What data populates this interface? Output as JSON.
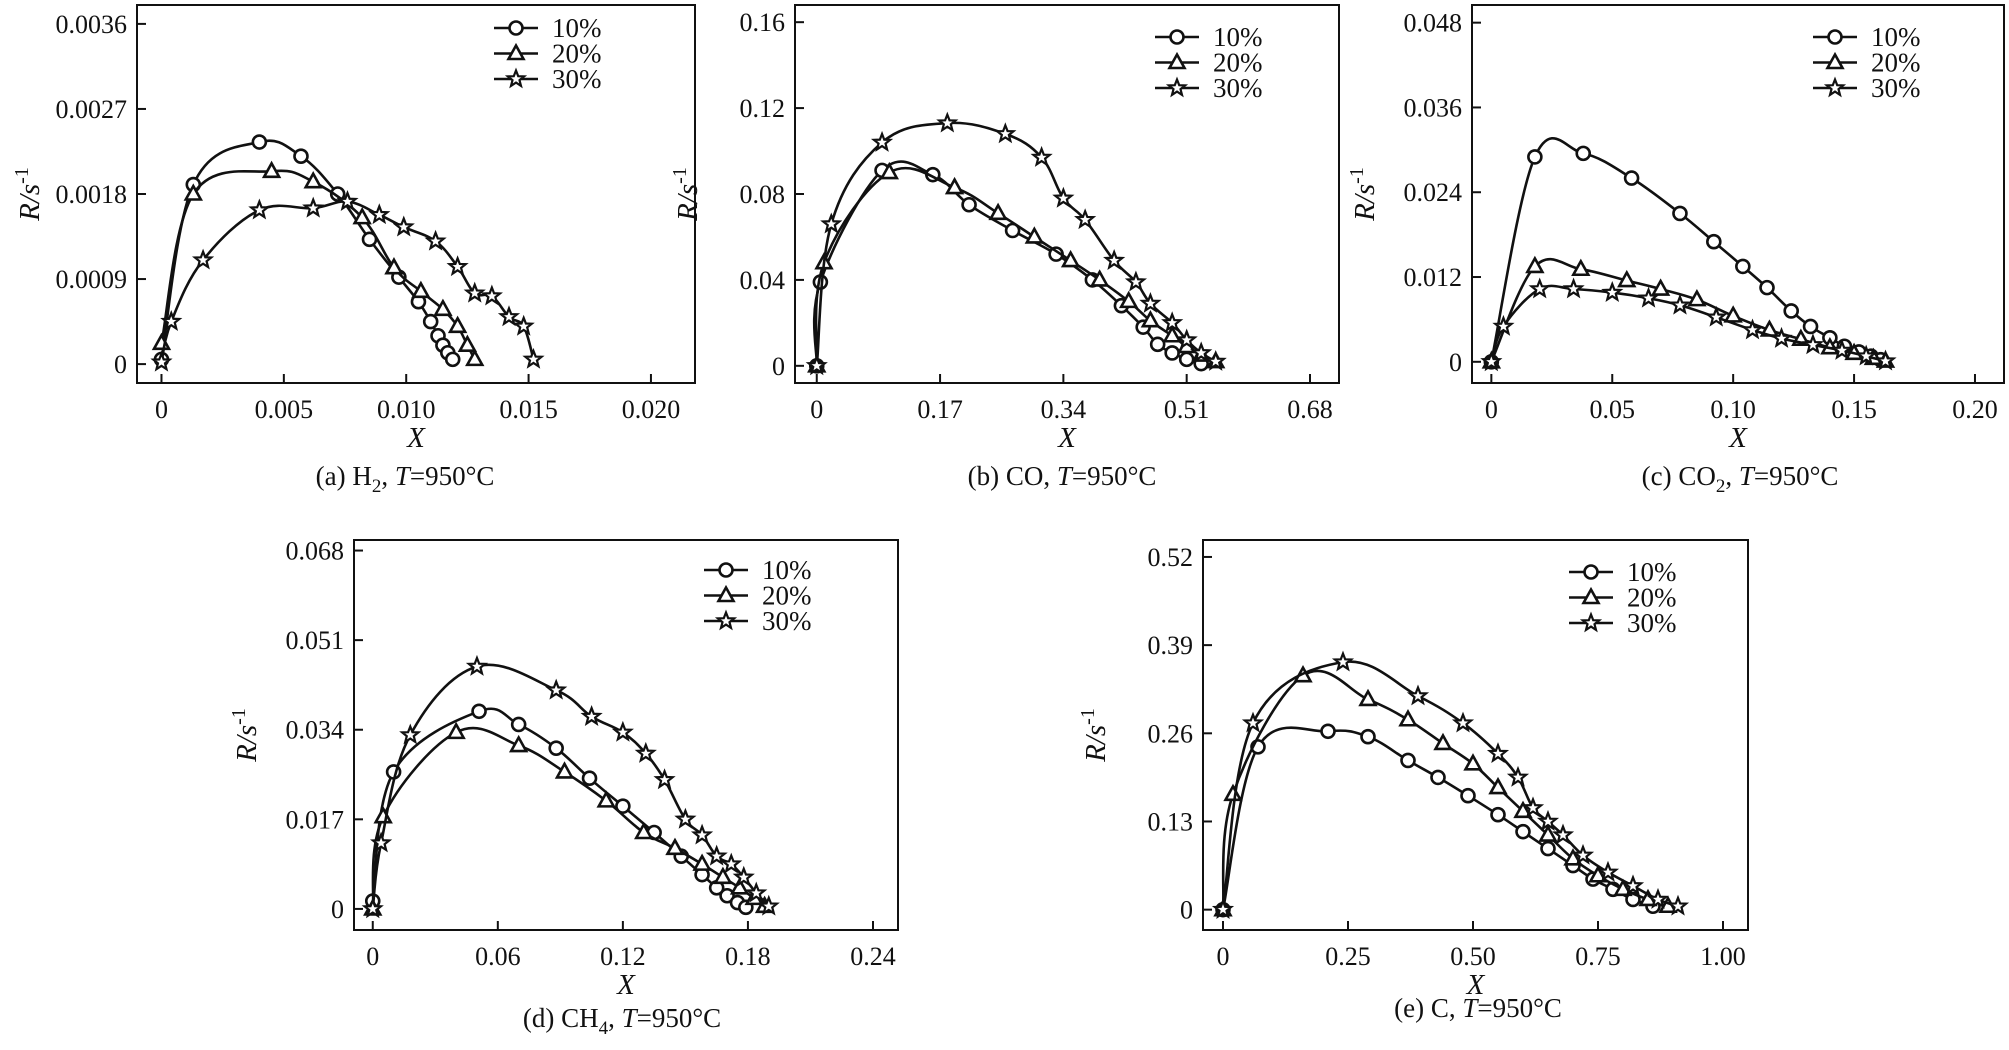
{
  "figure_caption_suffix": ", T=950°C",
  "chart_data": [
    {
      "id": "a",
      "type": "line",
      "caption_prefix": "(a)",
      "species": "H",
      "species_sub": "2",
      "caption_temp_label": "T",
      "caption_temp_value": "=950°C",
      "xlabel": "X",
      "ylabel": "R/s",
      "ylabel_sup": "-1",
      "xlim": [
        -0.001,
        0.0218
      ],
      "ylim": [
        -0.0002,
        0.0038
      ],
      "xticks": [
        0,
        0.005,
        0.01,
        0.015,
        0.02
      ],
      "xtick_labels": [
        "0",
        "0.005",
        "0.010",
        "0.015",
        "0.020"
      ],
      "yticks": [
        0,
        0.0009,
        0.0018,
        0.0027,
        0.0036
      ],
      "ytick_labels": [
        "0",
        "0.0009",
        "0.0018",
        "0.0027",
        "0.0036"
      ],
      "legend": [
        "10%",
        "20%",
        "30%"
      ],
      "series": [
        {
          "name": "10%",
          "marker": "circle",
          "x": [
            0,
            0.0013,
            0.004,
            0.0057,
            0.0072,
            0.0085,
            0.0097,
            0.0105,
            0.011,
            0.0113,
            0.0115,
            0.0117,
            0.0119
          ],
          "y": [
            5e-05,
            0.0019,
            0.00235,
            0.0022,
            0.0018,
            0.00132,
            0.00092,
            0.00066,
            0.00045,
            0.0003,
            0.0002,
            0.00012,
            5e-05
          ]
        },
        {
          "name": "20%",
          "marker": "triangle",
          "x": [
            0,
            0.0013,
            0.0045,
            0.0062,
            0.0082,
            0.0095,
            0.0106,
            0.0115,
            0.0121,
            0.0125,
            0.0128
          ],
          "y": [
            0.00022,
            0.0018,
            0.00204,
            0.00193,
            0.00155,
            0.00102,
            0.00077,
            0.00058,
            0.0004,
            0.0002,
            5e-05
          ]
        },
        {
          "name": "30%",
          "marker": "star",
          "x": [
            0,
            0.0004,
            0.0017,
            0.004,
            0.0062,
            0.0076,
            0.0089,
            0.0099,
            0.0112,
            0.0121,
            0.0128,
            0.0135,
            0.0142,
            0.0148,
            0.0152
          ],
          "y": [
            2e-05,
            0.00045,
            0.0011,
            0.00163,
            0.00165,
            0.00172,
            0.00158,
            0.00145,
            0.0013,
            0.00103,
            0.00075,
            0.00072,
            0.0005,
            0.0004,
            5e-05
          ]
        }
      ]
    },
    {
      "id": "b",
      "type": "line",
      "caption_prefix": "(b)",
      "species": "CO",
      "species_sub": "",
      "caption_temp_label": "T",
      "caption_temp_value": "=950°C",
      "xlabel": "X",
      "ylabel": "R/s",
      "ylabel_sup": "-1",
      "xlim": [
        -0.03,
        0.72
      ],
      "ylim": [
        -0.008,
        0.168
      ],
      "xticks": [
        0,
        0.17,
        0.34,
        0.51,
        0.68
      ],
      "xtick_labels": [
        "0",
        "0.17",
        "0.34",
        "0.51",
        "0.68"
      ],
      "yticks": [
        0,
        0.04,
        0.08,
        0.12,
        0.16
      ],
      "ytick_labels": [
        "0",
        "0.04",
        "0.08",
        "0.12",
        "0.16"
      ],
      "legend": [
        "10%",
        "20%",
        "30%"
      ],
      "series": [
        {
          "name": "10%",
          "marker": "circle",
          "x": [
            0,
            0.005,
            0.09,
            0.16,
            0.21,
            0.27,
            0.33,
            0.38,
            0.42,
            0.45,
            0.47,
            0.49,
            0.51,
            0.53
          ],
          "y": [
            0.0,
            0.039,
            0.091,
            0.089,
            0.075,
            0.063,
            0.052,
            0.04,
            0.028,
            0.018,
            0.01,
            0.006,
            0.003,
            0.001
          ]
        },
        {
          "name": "20%",
          "marker": "triangle",
          "x": [
            0,
            0.01,
            0.1,
            0.19,
            0.25,
            0.3,
            0.35,
            0.39,
            0.43,
            0.46,
            0.49,
            0.51,
            0.53,
            0.55
          ],
          "y": [
            0.0,
            0.048,
            0.09,
            0.083,
            0.071,
            0.06,
            0.049,
            0.04,
            0.03,
            0.021,
            0.014,
            0.009,
            0.005,
            0.002
          ]
        },
        {
          "name": "30%",
          "marker": "star",
          "x": [
            0,
            0.02,
            0.09,
            0.18,
            0.26,
            0.31,
            0.34,
            0.37,
            0.41,
            0.44,
            0.46,
            0.49,
            0.51,
            0.53,
            0.55
          ],
          "y": [
            0.0,
            0.066,
            0.104,
            0.113,
            0.108,
            0.097,
            0.078,
            0.068,
            0.049,
            0.039,
            0.029,
            0.02,
            0.012,
            0.006,
            0.002
          ]
        }
      ]
    },
    {
      "id": "c",
      "type": "line",
      "caption_prefix": "(c)",
      "species": "CO",
      "species_sub": "2",
      "caption_temp_label": "T",
      "caption_temp_value": "=950°C",
      "xlabel": "X",
      "ylabel": "R/s",
      "ylabel_sup": "-1",
      "xlim": [
        -0.008,
        0.212
      ],
      "ylim": [
        -0.003,
        0.0505
      ],
      "xticks": [
        0,
        0.05,
        0.1,
        0.15,
        0.2
      ],
      "xtick_labels": [
        "0",
        "0.05",
        "0.10",
        "0.15",
        "0.20"
      ],
      "yticks": [
        0,
        0.012,
        0.024,
        0.036,
        0.048
      ],
      "ytick_labels": [
        "0",
        "0.012",
        "0.024",
        "0.036",
        "0.048"
      ],
      "legend": [
        "10%",
        "20%",
        "30%"
      ],
      "series": [
        {
          "name": "10%",
          "marker": "circle",
          "x": [
            0,
            0.018,
            0.038,
            0.058,
            0.078,
            0.092,
            0.104,
            0.114,
            0.124,
            0.132,
            0.14,
            0.146,
            0.152,
            0.157,
            0.161
          ],
          "y": [
            0.0,
            0.029,
            0.0295,
            0.026,
            0.021,
            0.017,
            0.0135,
            0.0105,
            0.0072,
            0.005,
            0.0034,
            0.0022,
            0.0014,
            0.0008,
            0.0003
          ]
        },
        {
          "name": "20%",
          "marker": "triangle",
          "x": [
            0,
            0.018,
            0.037,
            0.056,
            0.07,
            0.085,
            0.1,
            0.115,
            0.128,
            0.14,
            0.15,
            0.158,
            0.163
          ],
          "y": [
            0.0,
            0.0135,
            0.0131,
            0.0115,
            0.0103,
            0.0088,
            0.0065,
            0.0045,
            0.0032,
            0.002,
            0.0012,
            0.0005,
            0.0001
          ]
        },
        {
          "name": "30%",
          "marker": "star",
          "x": [
            0,
            0.005,
            0.02,
            0.034,
            0.05,
            0.065,
            0.078,
            0.093,
            0.108,
            0.12,
            0.133,
            0.145,
            0.155,
            0.163
          ],
          "y": [
            0.0,
            0.005,
            0.0103,
            0.0103,
            0.0098,
            0.009,
            0.008,
            0.0063,
            0.0045,
            0.0033,
            0.0024,
            0.0016,
            0.0008,
            0.0001
          ]
        }
      ]
    },
    {
      "id": "d",
      "type": "line",
      "caption_prefix": "(d)",
      "species": "CH",
      "species_sub": "4",
      "caption_temp_label": "T",
      "caption_temp_value": "=950°C",
      "xlabel": "X",
      "ylabel": "R/s",
      "ylabel_sup": "-1",
      "xlim": [
        -0.009,
        0.252
      ],
      "ylim": [
        -0.004,
        0.07
      ],
      "xticks": [
        0,
        0.06,
        0.12,
        0.18,
        0.24
      ],
      "xtick_labels": [
        "0",
        "0.06",
        "0.12",
        "0.18",
        "0.24"
      ],
      "yticks": [
        0,
        0.017,
        0.034,
        0.051,
        0.068
      ],
      "ytick_labels": [
        "0",
        "0.017",
        "0.034",
        "0.051",
        "0.068"
      ],
      "legend": [
        "10%",
        "20%",
        "30%"
      ],
      "series": [
        {
          "name": "10%",
          "marker": "circle",
          "x": [
            0,
            0.01,
            0.051,
            0.07,
            0.088,
            0.104,
            0.12,
            0.135,
            0.148,
            0.158,
            0.165,
            0.17,
            0.175,
            0.179
          ],
          "y": [
            0.0015,
            0.026,
            0.0375,
            0.035,
            0.0305,
            0.0248,
            0.0195,
            0.0145,
            0.01,
            0.0065,
            0.004,
            0.0025,
            0.0012,
            0.0003
          ]
        },
        {
          "name": "20%",
          "marker": "triangle",
          "x": [
            0,
            0.005,
            0.04,
            0.07,
            0.092,
            0.112,
            0.13,
            0.145,
            0.158,
            0.168,
            0.176,
            0.183,
            0.188
          ],
          "y": [
            0.0,
            0.0175,
            0.0335,
            0.031,
            0.026,
            0.0205,
            0.0145,
            0.0115,
            0.0085,
            0.006,
            0.004,
            0.002,
            0.0005
          ]
        },
        {
          "name": "30%",
          "marker": "star",
          "x": [
            0,
            0.004,
            0.018,
            0.05,
            0.088,
            0.105,
            0.12,
            0.131,
            0.14,
            0.15,
            0.158,
            0.165,
            0.172,
            0.178,
            0.184,
            0.19
          ],
          "y": [
            0.0,
            0.0125,
            0.033,
            0.046,
            0.0415,
            0.0365,
            0.0335,
            0.0295,
            0.0245,
            0.017,
            0.014,
            0.01,
            0.0085,
            0.006,
            0.003,
            0.0005
          ]
        }
      ]
    },
    {
      "id": "e",
      "type": "line",
      "caption_prefix": "(e)",
      "species": "C",
      "species_sub": "",
      "caption_temp_label": "T",
      "caption_temp_value": "=950°C",
      "xlabel": "X",
      "ylabel": "R/s",
      "ylabel_sup": "-1",
      "xlim": [
        -0.04,
        1.05
      ],
      "ylim": [
        -0.03,
        0.545
      ],
      "xticks": [
        0,
        0.25,
        0.5,
        0.75,
        1.0
      ],
      "xtick_labels": [
        "0",
        "0.25",
        "0.50",
        "0.75",
        "1.00"
      ],
      "yticks": [
        0,
        0.13,
        0.26,
        0.39,
        0.52
      ],
      "ytick_labels": [
        "0",
        "0.13",
        "0.26",
        "0.39",
        "0.52"
      ],
      "legend": [
        "10%",
        "20%",
        "30%"
      ],
      "series": [
        {
          "name": "10%",
          "marker": "circle",
          "x": [
            0,
            0.07,
            0.21,
            0.29,
            0.37,
            0.43,
            0.49,
            0.55,
            0.6,
            0.65,
            0.7,
            0.74,
            0.78,
            0.82,
            0.86
          ],
          "y": [
            0.0,
            0.24,
            0.263,
            0.255,
            0.22,
            0.195,
            0.168,
            0.14,
            0.115,
            0.09,
            0.065,
            0.045,
            0.03,
            0.015,
            0.005
          ]
        },
        {
          "name": "20%",
          "marker": "triangle",
          "x": [
            0,
            0.02,
            0.16,
            0.29,
            0.37,
            0.44,
            0.5,
            0.55,
            0.6,
            0.65,
            0.7,
            0.75,
            0.8,
            0.85,
            0.89
          ],
          "y": [
            0.0,
            0.17,
            0.345,
            0.31,
            0.28,
            0.245,
            0.215,
            0.18,
            0.145,
            0.11,
            0.075,
            0.05,
            0.03,
            0.015,
            0.005
          ]
        },
        {
          "name": "30%",
          "marker": "star",
          "x": [
            0,
            0.06,
            0.24,
            0.39,
            0.48,
            0.55,
            0.59,
            0.62,
            0.65,
            0.68,
            0.72,
            0.77,
            0.82,
            0.87,
            0.91
          ],
          "y": [
            0.0,
            0.275,
            0.365,
            0.315,
            0.275,
            0.23,
            0.195,
            0.15,
            0.13,
            0.11,
            0.08,
            0.055,
            0.035,
            0.015,
            0.005
          ]
        }
      ]
    }
  ]
}
